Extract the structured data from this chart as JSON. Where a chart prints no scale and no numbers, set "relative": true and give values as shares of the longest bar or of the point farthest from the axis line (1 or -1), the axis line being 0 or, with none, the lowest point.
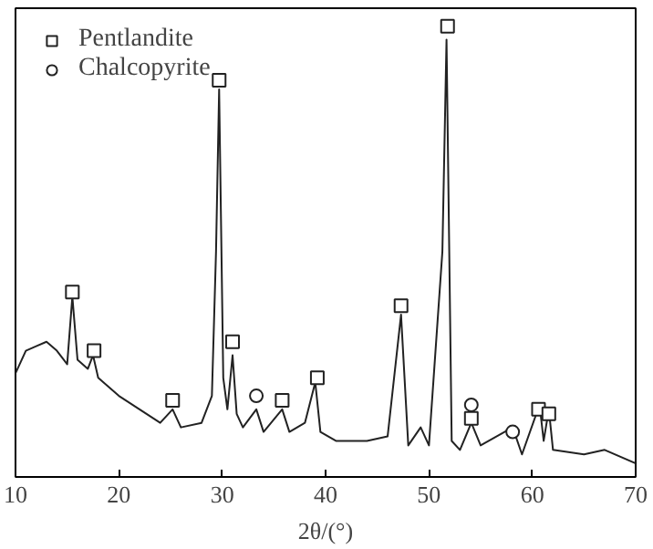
{
  "chart_data": {
    "type": "line",
    "xlabel": "2θ/(°)",
    "relative": true,
    "xlim": [
      10,
      70
    ],
    "xticks": [
      10,
      20,
      30,
      40,
      50,
      60,
      70
    ],
    "grid": false,
    "legend": "top left",
    "series": [
      {
        "color": "#222222",
        "marker": "none",
        "x": [
          10,
          11,
          12,
          13,
          14,
          15,
          15.5,
          16,
          17,
          17.5,
          18,
          20,
          22,
          24,
          25.2,
          26,
          28,
          29,
          29.4,
          29.7,
          30.1,
          30.5,
          31,
          31.4,
          32,
          33.3,
          34,
          35.8,
          36.5,
          38,
          39,
          39.5,
          41,
          44,
          46,
          47.3,
          48,
          49.2,
          50,
          51.3,
          51.7,
          52.2,
          53,
          54.1,
          55,
          58.1,
          59,
          60.7,
          61.1,
          61.6,
          62,
          65,
          67,
          70
        ],
        "values": [
          0.23,
          0.28,
          0.29,
          0.3,
          0.28,
          0.25,
          0.4,
          0.26,
          0.24,
          0.27,
          0.22,
          0.18,
          0.15,
          0.12,
          0.15,
          0.11,
          0.12,
          0.18,
          0.5,
          0.86,
          0.22,
          0.15,
          0.27,
          0.14,
          0.11,
          0.15,
          0.1,
          0.15,
          0.1,
          0.12,
          0.21,
          0.1,
          0.08,
          0.08,
          0.09,
          0.36,
          0.07,
          0.11,
          0.07,
          0.5,
          0.97,
          0.08,
          0.06,
          0.12,
          0.07,
          0.11,
          0.05,
          0.16,
          0.08,
          0.15,
          0.06,
          0.05,
          0.06,
          0.03
        ]
      },
      {
        "type": "scatter",
        "name": "Pentlandite",
        "color": "#222222",
        "marker": "square",
        "x": [
          15.5,
          17.6,
          25.2,
          29.7,
          31,
          35.8,
          39.2,
          47.3,
          51.8,
          54.1,
          60.6,
          61.6
        ],
        "values": [
          0.41,
          0.28,
          0.17,
          0.88,
          0.3,
          0.17,
          0.22,
          0.38,
          1.0,
          0.13,
          0.15,
          0.14
        ]
      },
      {
        "type": "scatter",
        "name": "Chalcopyrite",
        "color": "#222222",
        "marker": "circle",
        "x": [
          33.3,
          54.1,
          58.1
        ],
        "values": [
          0.18,
          0.16,
          0.1
        ]
      }
    ]
  }
}
